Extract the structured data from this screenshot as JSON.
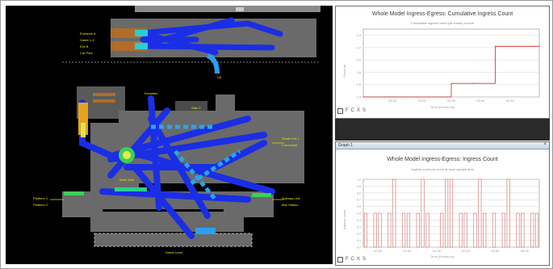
{
  "simulation": {
    "labels": {
      "upper_a": "Entrance A",
      "upper_b": "Gates 1-4",
      "upper_c": "Exit B",
      "upper_d": "Car Park",
      "middle_top": "Escalator",
      "middle_flag": "Stair 2",
      "middle_right": "Lift",
      "right_a": "Retail Unit 1",
      "right_b": "Concourse",
      "center_label": "Ticket Hall",
      "left_a": "Platform 1",
      "left_b": "Platform 2",
      "right_c": "Subway Link",
      "right_d": "Bus Station",
      "bottom_label": "Street Level"
    }
  },
  "panel1": {
    "title": "Whole Model Ingress-Egress: Cumulative Ingress Count",
    "subtitle": "Cumulative ingress count (all zones) vs time",
    "xlabel": "Time (hh:mm:ss)",
    "ylabel": "Count (k)",
    "toolbar": {
      "save_icon": "save-icon",
      "labels": [
        "F",
        "C",
        "X",
        "S"
      ]
    }
  },
  "panel2": {
    "header": "Graph 1",
    "close": "×",
    "title": "Whole Model Ingress-Egress: Ingress Count",
    "subtitle": "Ingress count per zone at each sample time",
    "xlabel": "Time (hh:mm:ss)",
    "ylabel": "Ingress count",
    "toolbar": {
      "save_icon": "save-icon",
      "labels": [
        "F",
        "C",
        "X",
        "S"
      ]
    }
  },
  "chart_data": [
    {
      "type": "line",
      "title": "Whole Model Ingress-Egress: Cumulative Ingress Count",
      "xlabel": "Time (hh:mm:ss)",
      "ylabel": "Count (k)",
      "x": [
        "00:00",
        "00:30",
        "01:00",
        "01:30",
        "01:40",
        "01:50",
        "02:00",
        "02:30",
        "03:00"
      ],
      "x_ticks": [
        "00:30",
        "01:00",
        "01:30",
        "02:00",
        "02:30"
      ],
      "y_ticks": [
        1.4,
        1.6,
        1.8,
        2.0,
        2.2,
        2.4
      ],
      "ylim": [
        1.4,
        2.5
      ],
      "series": [
        {
          "values": [
            1.4,
            1.4,
            1.4,
            1.4,
            1.62,
            1.62,
            2.22,
            2.22,
            2.22
          ],
          "color": "#d04040"
        }
      ],
      "grid": true
    },
    {
      "type": "bar",
      "title": "Whole Model Ingress-Egress: Ingress Count",
      "xlabel": "Time (hh:mm:ss)",
      "ylabel": "Ingress count",
      "x_ticks": [
        "00:30",
        "01:00",
        "01:30",
        "02:00",
        "02:30",
        "03:00"
      ],
      "y_ticks": [
        0,
        0.1,
        0.2,
        0.3,
        0.4,
        0.5,
        0.6,
        0.7,
        0.8,
        0.9,
        1.0
      ],
      "ylim": [
        0,
        1.0
      ],
      "values": [
        0.5,
        0,
        0.5,
        0.5,
        0,
        0.5,
        1.0,
        0,
        0.5,
        0.5,
        0,
        0.5,
        1.0,
        0.5,
        0,
        0,
        0.5,
        1.0,
        1.0,
        0,
        0.5,
        0.5,
        0,
        0.5,
        1.0,
        0.5,
        0,
        0.5,
        0,
        0.5,
        1.0,
        0,
        0.5,
        0.5,
        0,
        0.5,
        0.5
      ],
      "color": "#d98080",
      "grid": true
    }
  ]
}
